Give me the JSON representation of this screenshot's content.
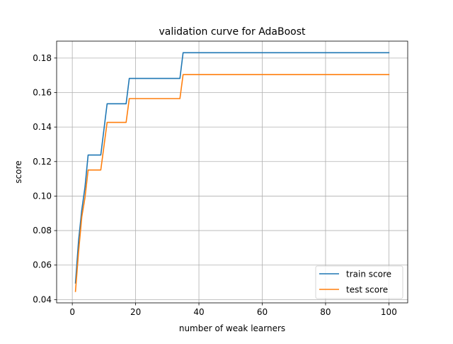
{
  "chart_data": {
    "type": "line",
    "title": "validation curve for AdaBoost",
    "xlabel": "number of weak learners",
    "ylabel": "score",
    "xlim": [
      -4.95,
      105.95
    ],
    "ylim": [
      0.0381,
      0.1898
    ],
    "xticks": [
      0,
      20,
      40,
      60,
      80,
      100
    ],
    "xtick_labels": [
      "0",
      "20",
      "40",
      "60",
      "80",
      "100"
    ],
    "yticks": [
      0.04,
      0.06,
      0.08,
      0.1,
      0.12,
      0.14,
      0.16,
      0.18
    ],
    "ytick_labels": [
      "0.04",
      "0.06",
      "0.08",
      "0.10",
      "0.12",
      "0.14",
      "0.16",
      "0.18"
    ],
    "grid": true,
    "legend_position": "lower-right",
    "series": [
      {
        "name": "train score",
        "color": "#1f77b4",
        "x": [
          1,
          2,
          3,
          4,
          5,
          7,
          9,
          11,
          13,
          15,
          17,
          18,
          20,
          25,
          30,
          34,
          35,
          40,
          50,
          60,
          70,
          80,
          90,
          100
        ],
        "y": [
          0.0496,
          0.0745,
          0.092,
          0.105,
          0.1238,
          0.1238,
          0.1238,
          0.1535,
          0.1535,
          0.1535,
          0.1535,
          0.1682,
          0.1682,
          0.1682,
          0.1682,
          0.1682,
          0.1831,
          0.1831,
          0.1831,
          0.1831,
          0.1831,
          0.1831,
          0.1831,
          0.1831
        ]
      },
      {
        "name": "test score",
        "color": "#ff7f0e",
        "x": [
          1,
          2,
          3,
          4,
          5,
          7,
          9,
          11,
          13,
          15,
          17,
          18,
          20,
          25,
          30,
          34,
          35,
          40,
          50,
          60,
          70,
          80,
          90,
          100
        ],
        "y": [
          0.0447,
          0.068,
          0.088,
          0.099,
          0.1151,
          0.1151,
          0.1151,
          0.1427,
          0.1427,
          0.1427,
          0.1427,
          0.1565,
          0.1565,
          0.1565,
          0.1565,
          0.1565,
          0.1704,
          0.1704,
          0.1704,
          0.1704,
          0.1704,
          0.1704,
          0.1704,
          0.1704
        ]
      }
    ]
  }
}
